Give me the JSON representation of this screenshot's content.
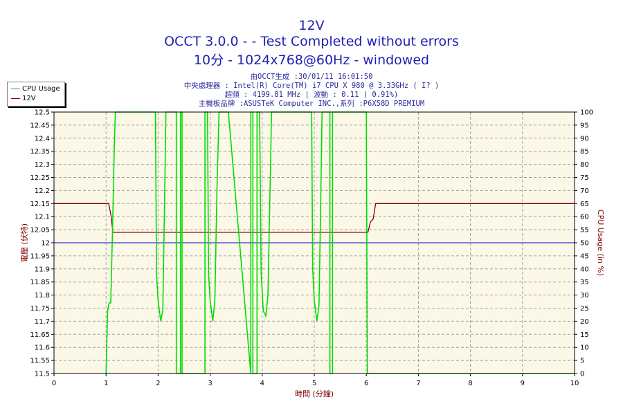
{
  "header": {
    "title_line1": "12V",
    "title_line2": "OCCT 3.0.0 -  - Test Completed without errors",
    "title_line3": "10分 - 1024x768@60Hz - windowed",
    "info_line1": "由OCCT生成 :30/01/11 16:01:50",
    "info_line2": "中央處理器 : Intel(R) Core(TM) i7 CPU X 980 @ 3.33GHz (  I? )",
    "info_line3": "超頻 : 4199.81 MHz | 波動 : 0.11 ( 0.91%)",
    "info_line4": "主機板品牌 :ASUSTeK Computer INC.,系列 :P6X58D PREMIUM"
  },
  "legend": {
    "items": [
      {
        "label": "CPU Usage",
        "color": "#00cc00"
      },
      {
        "label": "12V",
        "color": "#800000"
      }
    ]
  },
  "colors": {
    "plot_bg": "#fcf8e8",
    "grid": "#a0a0a0",
    "cpu_line": "#00dd00",
    "volt_line": "#800000",
    "ref_line": "#0000cc",
    "left_axis_label": "#800000",
    "right_axis_label": "#800000",
    "x_axis_label": "#800000"
  },
  "chart_data": {
    "type": "line",
    "title": "12V",
    "xlabel": "時間 (分鐘)",
    "ylabel_left": "電壓 (伏特)",
    "ylabel_right": "CPU Usage (in %)",
    "xlim": [
      0,
      10
    ],
    "ylim_left": [
      11.5,
      12.5
    ],
    "ylim_right": [
      0,
      100
    ],
    "x_ticks": [
      "0",
      "1",
      "2",
      "3",
      "4",
      "5",
      "6",
      "7",
      "8",
      "9",
      "10"
    ],
    "y_left_ticks": [
      "11.5",
      "11.55",
      "11.6",
      "11.65",
      "11.7",
      "11.75",
      "11.8",
      "11.85",
      "11.9",
      "11.95",
      "12",
      "12.05",
      "12.1",
      "12.15",
      "12.2",
      "12.25",
      "12.3",
      "12.35",
      "12.4",
      "12.45",
      "12.5"
    ],
    "y_right_ticks": [
      "0",
      "5",
      "10",
      "15",
      "20",
      "25",
      "30",
      "35",
      "40",
      "45",
      "50",
      "55",
      "60",
      "65",
      "70",
      "75",
      "80",
      "85",
      "90",
      "95",
      "100"
    ],
    "grid": true,
    "legend_position": "top-left outside",
    "reference_line": {
      "axis": "left",
      "value": 12.0
    },
    "series": [
      {
        "name": "12V",
        "axis": "left",
        "points": [
          [
            0,
            12.15
          ],
          [
            1.05,
            12.15
          ],
          [
            1.1,
            12.1
          ],
          [
            1.13,
            12.04
          ],
          [
            6.03,
            12.04
          ],
          [
            6.08,
            12.08
          ],
          [
            6.13,
            12.09
          ],
          [
            6.18,
            12.15
          ],
          [
            10,
            12.15
          ]
        ]
      },
      {
        "name": "CPU Usage",
        "axis": "right",
        "points": [
          [
            1.0,
            0
          ],
          [
            1.03,
            24
          ],
          [
            1.06,
            27
          ],
          [
            1.09,
            27
          ],
          [
            1.13,
            60
          ],
          [
            1.16,
            88
          ],
          [
            1.18,
            100
          ],
          [
            1.95,
            100
          ],
          [
            1.97,
            38
          ],
          [
            2.0,
            28
          ],
          [
            2.05,
            20
          ],
          [
            2.09,
            24
          ],
          [
            2.12,
            60
          ],
          [
            2.15,
            100
          ],
          [
            2.3,
            100
          ],
          [
            2.35,
            100
          ],
          [
            2.35,
            0
          ],
          [
            2.43,
            0
          ],
          [
            2.43,
            100
          ],
          [
            2.46,
            100
          ],
          [
            2.46,
            0
          ],
          [
            2.9,
            0
          ],
          [
            2.9,
            100
          ],
          [
            2.95,
            100
          ],
          [
            2.97,
            38
          ],
          [
            3.0,
            28
          ],
          [
            3.05,
            20
          ],
          [
            3.09,
            28
          ],
          [
            3.13,
            70
          ],
          [
            3.17,
            100
          ],
          [
            3.35,
            100
          ],
          [
            3.35,
            100
          ],
          [
            3.78,
            0
          ],
          [
            3.78,
            100
          ],
          [
            3.82,
            100
          ],
          [
            3.82,
            0
          ],
          [
            3.9,
            0
          ],
          [
            3.9,
            100
          ],
          [
            3.95,
            100
          ],
          [
            3.98,
            38
          ],
          [
            4.02,
            24
          ],
          [
            4.07,
            22
          ],
          [
            4.11,
            30
          ],
          [
            4.15,
            70
          ],
          [
            4.18,
            100
          ],
          [
            4.95,
            100
          ],
          [
            4.97,
            40
          ],
          [
            5.0,
            28
          ],
          [
            5.05,
            20
          ],
          [
            5.09,
            26
          ],
          [
            5.12,
            60
          ],
          [
            5.15,
            100
          ],
          [
            5.28,
            100
          ],
          [
            5.3,
            100
          ],
          [
            5.3,
            0
          ],
          [
            5.35,
            0
          ],
          [
            5.35,
            100
          ],
          [
            5.38,
            100
          ],
          [
            6.0,
            100
          ],
          [
            6.02,
            0
          ],
          [
            10,
            0
          ]
        ]
      }
    ]
  }
}
